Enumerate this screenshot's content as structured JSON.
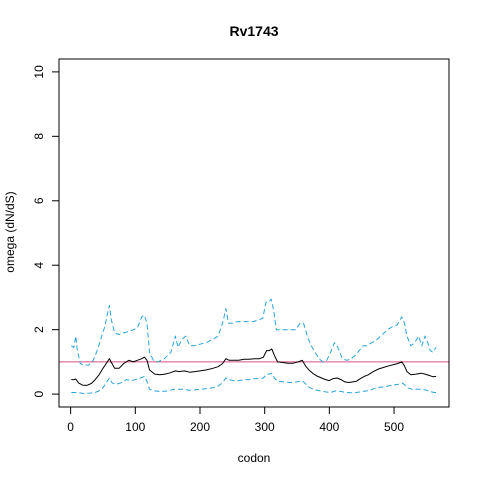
{
  "chart_data": {
    "type": "line",
    "title": "Rv1743",
    "xlabel": "codon",
    "ylabel": "omega (dN/dS)",
    "xlim": [
      -18,
      585
    ],
    "ylim": [
      -0.4,
      10.4
    ],
    "x_ticks": [
      0,
      100,
      200,
      300,
      400,
      500
    ],
    "y_ticks": [
      0,
      2,
      4,
      6,
      8,
      10
    ],
    "grid": false,
    "legend": "none",
    "reference_line": {
      "y": 1,
      "color": "#d94f86"
    },
    "series": [
      {
        "role": "upper",
        "color": "#29a3d8",
        "dash": "dashed",
        "points": [
          [
            1,
            1.5
          ],
          [
            5,
            1.45
          ],
          [
            8,
            1.8
          ],
          [
            10,
            1.4
          ],
          [
            15,
            0.95
          ],
          [
            20,
            0.9
          ],
          [
            28,
            0.9
          ],
          [
            35,
            1.05
          ],
          [
            42,
            1.4
          ],
          [
            48,
            1.8
          ],
          [
            53,
            2.1
          ],
          [
            57,
            2.5
          ],
          [
            60,
            2.75
          ],
          [
            63,
            2.3
          ],
          [
            68,
            1.9
          ],
          [
            75,
            1.85
          ],
          [
            82,
            1.9
          ],
          [
            90,
            1.95
          ],
          [
            97,
            2.0
          ],
          [
            103,
            2.05
          ],
          [
            110,
            2.4
          ],
          [
            114,
            2.45
          ],
          [
            118,
            2.2
          ],
          [
            122,
            1.3
          ],
          [
            128,
            1.05
          ],
          [
            135,
            1.0
          ],
          [
            145,
            1.1
          ],
          [
            155,
            1.3
          ],
          [
            162,
            1.8
          ],
          [
            166,
            1.45
          ],
          [
            172,
            1.7
          ],
          [
            178,
            1.8
          ],
          [
            184,
            1.5
          ],
          [
            190,
            1.5
          ],
          [
            200,
            1.55
          ],
          [
            210,
            1.6
          ],
          [
            220,
            1.7
          ],
          [
            228,
            1.8
          ],
          [
            235,
            2.2
          ],
          [
            240,
            2.65
          ],
          [
            244,
            2.2
          ],
          [
            250,
            2.2
          ],
          [
            258,
            2.25
          ],
          [
            266,
            2.25
          ],
          [
            274,
            2.25
          ],
          [
            282,
            2.25
          ],
          [
            290,
            2.3
          ],
          [
            297,
            2.35
          ],
          [
            302,
            2.85
          ],
          [
            306,
            2.85
          ],
          [
            310,
            2.95
          ],
          [
            314,
            2.6
          ],
          [
            318,
            2.0
          ],
          [
            325,
            2.0
          ],
          [
            333,
            2.0
          ],
          [
            341,
            2.0
          ],
          [
            348,
            2.0
          ],
          [
            355,
            2.2
          ],
          [
            360,
            2.2
          ],
          [
            366,
            1.8
          ],
          [
            372,
            1.5
          ],
          [
            378,
            1.3
          ],
          [
            384,
            1.1
          ],
          [
            390,
            1.0
          ],
          [
            396,
            1.05
          ],
          [
            402,
            1.3
          ],
          [
            408,
            1.6
          ],
          [
            413,
            1.45
          ],
          [
            420,
            1.1
          ],
          [
            427,
            1.05
          ],
          [
            434,
            1.1
          ],
          [
            440,
            1.2
          ],
          [
            446,
            1.35
          ],
          [
            452,
            1.5
          ],
          [
            458,
            1.5
          ],
          [
            466,
            1.6
          ],
          [
            474,
            1.7
          ],
          [
            482,
            1.85
          ],
          [
            490,
            2.0
          ],
          [
            498,
            2.1
          ],
          [
            505,
            2.15
          ],
          [
            512,
            2.4
          ],
          [
            516,
            2.2
          ],
          [
            520,
            1.8
          ],
          [
            526,
            1.5
          ],
          [
            532,
            1.6
          ],
          [
            538,
            1.8
          ],
          [
            543,
            1.5
          ],
          [
            548,
            1.8
          ],
          [
            552,
            1.6
          ],
          [
            556,
            1.35
          ],
          [
            560,
            1.3
          ],
          [
            565,
            1.45
          ]
        ]
      },
      {
        "role": "estimate",
        "color": "#000000",
        "dash": "solid",
        "points": [
          [
            1,
            0.45
          ],
          [
            5,
            0.45
          ],
          [
            8,
            0.47
          ],
          [
            12,
            0.35
          ],
          [
            18,
            0.28
          ],
          [
            25,
            0.27
          ],
          [
            32,
            0.33
          ],
          [
            38,
            0.45
          ],
          [
            44,
            0.6
          ],
          [
            50,
            0.8
          ],
          [
            55,
            0.95
          ],
          [
            60,
            1.1
          ],
          [
            64,
            0.95
          ],
          [
            68,
            0.8
          ],
          [
            75,
            0.8
          ],
          [
            82,
            0.95
          ],
          [
            90,
            1.05
          ],
          [
            97,
            1.0
          ],
          [
            103,
            1.05
          ],
          [
            110,
            1.1
          ],
          [
            114,
            1.15
          ],
          [
            118,
            1.05
          ],
          [
            122,
            0.75
          ],
          [
            130,
            0.62
          ],
          [
            138,
            0.6
          ],
          [
            146,
            0.62
          ],
          [
            154,
            0.66
          ],
          [
            162,
            0.72
          ],
          [
            168,
            0.7
          ],
          [
            176,
            0.72
          ],
          [
            184,
            0.68
          ],
          [
            192,
            0.7
          ],
          [
            200,
            0.72
          ],
          [
            210,
            0.75
          ],
          [
            220,
            0.8
          ],
          [
            228,
            0.85
          ],
          [
            235,
            0.95
          ],
          [
            240,
            1.1
          ],
          [
            245,
            1.05
          ],
          [
            252,
            1.05
          ],
          [
            260,
            1.05
          ],
          [
            268,
            1.08
          ],
          [
            276,
            1.08
          ],
          [
            284,
            1.1
          ],
          [
            292,
            1.1
          ],
          [
            298,
            1.15
          ],
          [
            303,
            1.35
          ],
          [
            307,
            1.35
          ],
          [
            311,
            1.4
          ],
          [
            315,
            1.2
          ],
          [
            320,
            1.0
          ],
          [
            328,
            0.98
          ],
          [
            336,
            0.96
          ],
          [
            344,
            0.96
          ],
          [
            352,
            1.0
          ],
          [
            358,
            1.05
          ],
          [
            364,
            0.85
          ],
          [
            370,
            0.72
          ],
          [
            376,
            0.62
          ],
          [
            382,
            0.55
          ],
          [
            388,
            0.5
          ],
          [
            394,
            0.45
          ],
          [
            400,
            0.42
          ],
          [
            406,
            0.48
          ],
          [
            412,
            0.5
          ],
          [
            418,
            0.45
          ],
          [
            424,
            0.38
          ],
          [
            430,
            0.36
          ],
          [
            436,
            0.38
          ],
          [
            442,
            0.4
          ],
          [
            448,
            0.48
          ],
          [
            454,
            0.55
          ],
          [
            460,
            0.6
          ],
          [
            468,
            0.7
          ],
          [
            476,
            0.78
          ],
          [
            484,
            0.83
          ],
          [
            492,
            0.88
          ],
          [
            500,
            0.92
          ],
          [
            506,
            0.95
          ],
          [
            512,
            1.0
          ],
          [
            516,
            0.88
          ],
          [
            520,
            0.7
          ],
          [
            526,
            0.6
          ],
          [
            534,
            0.62
          ],
          [
            542,
            0.65
          ],
          [
            548,
            0.62
          ],
          [
            554,
            0.58
          ],
          [
            560,
            0.54
          ],
          [
            565,
            0.55
          ]
        ]
      },
      {
        "role": "lower",
        "color": "#29a3d8",
        "dash": "dashed",
        "points": [
          [
            1,
            0.05
          ],
          [
            10,
            0.05
          ],
          [
            20,
            0.02
          ],
          [
            30,
            0.03
          ],
          [
            38,
            0.05
          ],
          [
            44,
            0.1
          ],
          [
            50,
            0.2
          ],
          [
            55,
            0.35
          ],
          [
            60,
            0.5
          ],
          [
            64,
            0.35
          ],
          [
            70,
            0.3
          ],
          [
            78,
            0.35
          ],
          [
            86,
            0.45
          ],
          [
            94,
            0.42
          ],
          [
            100,
            0.45
          ],
          [
            108,
            0.5
          ],
          [
            114,
            0.55
          ],
          [
            118,
            0.4
          ],
          [
            122,
            0.15
          ],
          [
            130,
            0.1
          ],
          [
            140,
            0.08
          ],
          [
            150,
            0.1
          ],
          [
            160,
            0.15
          ],
          [
            168,
            0.15
          ],
          [
            176,
            0.15
          ],
          [
            184,
            0.12
          ],
          [
            192,
            0.13
          ],
          [
            200,
            0.15
          ],
          [
            210,
            0.17
          ],
          [
            220,
            0.2
          ],
          [
            228,
            0.25
          ],
          [
            235,
            0.35
          ],
          [
            240,
            0.5
          ],
          [
            245,
            0.45
          ],
          [
            252,
            0.42
          ],
          [
            260,
            0.42
          ],
          [
            268,
            0.45
          ],
          [
            276,
            0.45
          ],
          [
            284,
            0.48
          ],
          [
            292,
            0.48
          ],
          [
            298,
            0.5
          ],
          [
            303,
            0.62
          ],
          [
            307,
            0.62
          ],
          [
            311,
            0.65
          ],
          [
            315,
            0.5
          ],
          [
            320,
            0.4
          ],
          [
            330,
            0.38
          ],
          [
            340,
            0.36
          ],
          [
            350,
            0.38
          ],
          [
            358,
            0.42
          ],
          [
            364,
            0.3
          ],
          [
            370,
            0.2
          ],
          [
            378,
            0.13
          ],
          [
            386,
            0.1
          ],
          [
            394,
            0.07
          ],
          [
            402,
            0.05
          ],
          [
            410,
            0.1
          ],
          [
            418,
            0.08
          ],
          [
            426,
            0.05
          ],
          [
            434,
            0.04
          ],
          [
            442,
            0.05
          ],
          [
            450,
            0.08
          ],
          [
            458,
            0.1
          ],
          [
            466,
            0.15
          ],
          [
            474,
            0.2
          ],
          [
            482,
            0.22
          ],
          [
            490,
            0.25
          ],
          [
            498,
            0.28
          ],
          [
            506,
            0.3
          ],
          [
            512,
            0.35
          ],
          [
            516,
            0.3
          ],
          [
            520,
            0.2
          ],
          [
            528,
            0.15
          ],
          [
            536,
            0.15
          ],
          [
            544,
            0.15
          ],
          [
            550,
            0.12
          ],
          [
            556,
            0.08
          ],
          [
            562,
            0.05
          ],
          [
            565,
            0.05
          ]
        ]
      }
    ]
  }
}
